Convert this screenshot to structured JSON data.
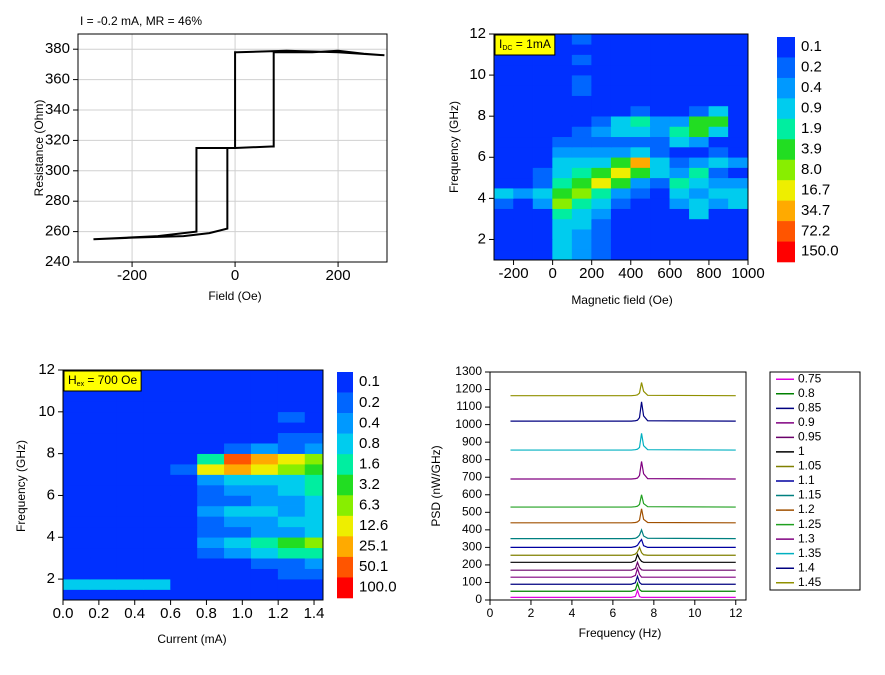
{
  "chart_data": [
    {
      "type": "line",
      "title": "I = -0.2 mA, MR = 46%",
      "x_label": "Field (Oe)",
      "y_label": "Resistance (Ohm)",
      "xlim": [
        -305,
        295
      ],
      "ylim": [
        240,
        390
      ],
      "xticks": [
        -200,
        0,
        200
      ],
      "yticks": [
        240,
        260,
        280,
        300,
        320,
        340,
        360,
        380
      ],
      "grid": true,
      "series": [
        {
          "color": "#000000",
          "x": [
            -275,
            -200,
            -100,
            -50,
            -15,
            -15,
            0,
            70,
            75,
            75,
            150,
            200,
            250,
            290,
            200,
            100,
            5,
            0,
            0,
            -40,
            -75,
            -75,
            -150,
            -275
          ],
          "values": [
            255,
            256,
            257,
            259,
            262,
            315,
            315,
            316,
            316,
            378,
            378,
            379,
            377,
            376,
            378,
            379,
            378,
            378,
            315,
            315,
            315,
            260,
            257,
            255
          ]
        }
      ]
    },
    {
      "type": "heatmap",
      "annotation": {
        "text": "I",
        "subscript": "DC",
        "suffix": " = 1mA"
      },
      "x_label": "Magnetic field (Oe)",
      "y_label": "Frequency (GHz)",
      "xlim": [
        -300,
        1000
      ],
      "ylim": [
        1,
        12
      ],
      "xticks": [
        -200,
        0,
        200,
        400,
        600,
        800,
        1000
      ],
      "yticks": [
        2,
        4,
        6,
        8,
        10,
        12
      ],
      "x_edges": [
        -300,
        -200,
        -100,
        0,
        100,
        200,
        300,
        400,
        500,
        600,
        700,
        800,
        900,
        1000
      ],
      "y_edges": [
        1,
        1.5,
        2,
        2.5,
        3,
        3.5,
        4,
        4.5,
        5,
        5.5,
        6,
        6.5,
        7,
        7.5,
        8,
        8.5,
        9,
        9.5,
        10,
        10.5,
        11,
        11.5,
        12
      ],
      "z": [
        [
          0.1,
          0.1,
          0.1,
          0.9,
          0.4,
          0.2,
          0.1,
          0.1,
          0.1,
          0.1,
          0.1,
          0.1,
          0.1
        ],
        [
          0.1,
          0.1,
          0.1,
          0.9,
          0.4,
          0.2,
          0.1,
          0.1,
          0.1,
          0.1,
          0.1,
          0.1,
          0.1
        ],
        [
          0.1,
          0.1,
          0.1,
          0.9,
          0.4,
          0.2,
          0.1,
          0.1,
          0.1,
          0.1,
          0.1,
          0.1,
          0.1
        ],
        [
          0.1,
          0.1,
          0.1,
          0.9,
          0.9,
          0.2,
          0.1,
          0.1,
          0.1,
          0.1,
          0.1,
          0.1,
          0.1
        ],
        [
          0.1,
          0.1,
          0.1,
          1.9,
          0.9,
          0.4,
          0.1,
          0.1,
          0.1,
          0.1,
          0.9,
          0.1,
          0.1
        ],
        [
          0.2,
          0.1,
          0.4,
          8,
          1.9,
          0.9,
          0.2,
          0.1,
          0.1,
          0.4,
          0.9,
          0.4,
          0.9
        ],
        [
          0.9,
          0.4,
          0.9,
          3.9,
          8,
          1.9,
          0.4,
          0.2,
          0.1,
          0.9,
          0.4,
          0.9,
          0.9
        ],
        [
          0.1,
          0.1,
          0.2,
          1.9,
          3.9,
          16.7,
          3.9,
          0.4,
          0.2,
          1.9,
          0.9,
          0.4,
          0.4
        ],
        [
          0.1,
          0.1,
          0.2,
          0.9,
          1.9,
          3.9,
          16.7,
          3.9,
          0.9,
          0.4,
          1.9,
          0.2,
          0.1
        ],
        [
          0.1,
          0.1,
          0.1,
          0.9,
          0.9,
          0.9,
          3.9,
          34.7,
          0.9,
          0.2,
          0.4,
          0.9,
          0.4
        ],
        [
          0.1,
          0.1,
          0.1,
          0.4,
          0.4,
          0.4,
          0.4,
          0.9,
          0.2,
          0.1,
          0.1,
          0.2,
          0.1
        ],
        [
          0.1,
          0.1,
          0.1,
          0.2,
          0.2,
          0.2,
          0.2,
          0.2,
          0.2,
          0.9,
          0.4,
          0.1,
          0.1
        ],
        [
          0.1,
          0.1,
          0.1,
          0.1,
          0.2,
          0.4,
          0.9,
          0.9,
          0.4,
          1.9,
          3.9,
          0.9,
          0.1
        ],
        [
          0.1,
          0.1,
          0.1,
          0.1,
          0.1,
          0.2,
          0.9,
          1.9,
          0.4,
          0.4,
          3.9,
          3.9,
          0.1
        ],
        [
          0.1,
          0.1,
          0.1,
          0.1,
          0.1,
          0.1,
          0.1,
          0.2,
          0.1,
          0.1,
          0.2,
          0.9,
          0.1
        ],
        [
          0.1,
          0.1,
          0.1,
          0.1,
          0.1,
          0.1,
          0.1,
          0.1,
          0.1,
          0.1,
          0.1,
          0.1,
          0.1
        ],
        [
          0.1,
          0.1,
          0.1,
          0.1,
          0.2,
          0.1,
          0.1,
          0.1,
          0.1,
          0.1,
          0.1,
          0.1,
          0.1
        ],
        [
          0.1,
          0.1,
          0.1,
          0.1,
          0.2,
          0.1,
          0.1,
          0.1,
          0.1,
          0.1,
          0.1,
          0.1,
          0.1
        ],
        [
          0.1,
          0.1,
          0.1,
          0.1,
          0.1,
          0.1,
          0.1,
          0.1,
          0.1,
          0.1,
          0.1,
          0.1,
          0.1
        ],
        [
          0.1,
          0.1,
          0.1,
          0.1,
          0.2,
          0.1,
          0.1,
          0.1,
          0.1,
          0.1,
          0.1,
          0.1,
          0.1
        ],
        [
          0.1,
          0.1,
          0.1,
          0.1,
          0.1,
          0.1,
          0.1,
          0.1,
          0.1,
          0.1,
          0.1,
          0.1,
          0.1
        ],
        [
          0.1,
          0.1,
          0.1,
          0.1,
          0.2,
          0.1,
          0.1,
          0.1,
          0.1,
          0.1,
          0.1,
          0.1,
          0.1
        ]
      ],
      "levels": [
        0.1,
        0.2,
        0.4,
        0.9,
        1.9,
        3.9,
        {
          "value": 8,
          "label": "8.0"
        },
        16.7,
        34.7,
        72.2,
        {
          "value": 150,
          "label": "150.0"
        }
      ],
      "colors": [
        "#0030ff",
        "#0066ff",
        "#0099ff",
        "#00ccee",
        "#00eea0",
        "#22dd22",
        "#88ee00",
        "#eeee00",
        "#ffaa00",
        "#ff5500",
        "#ff0000"
      ]
    },
    {
      "type": "heatmap",
      "annotation": {
        "text": "H",
        "subscript": "ex",
        "suffix": " = 700 Oe"
      },
      "x_label": "Current (mA)",
      "y_label": "Frequency (GHz)",
      "xlim": [
        0,
        1.45
      ],
      "ylim": [
        1,
        12
      ],
      "xticks": [
        {
          "value": 0,
          "label": "0.0"
        },
        0.2,
        0.4,
        0.6,
        0.8,
        {
          "value": 1,
          "label": "1.0"
        },
        1.2,
        1.4
      ],
      "yticks": [
        2,
        4,
        6,
        8,
        10,
        12
      ],
      "x_edges": [
        0,
        0.15,
        0.3,
        0.45,
        0.6,
        0.75,
        0.9,
        1.05,
        1.2,
        1.35,
        1.45
      ],
      "y_edges": [
        1,
        1.5,
        2,
        2.5,
        3,
        3.5,
        4,
        4.5,
        5,
        5.5,
        6,
        6.5,
        7,
        7.5,
        8,
        8.5,
        9,
        9.5,
        10,
        10.5,
        11,
        11.5,
        12
      ],
      "z": [
        [
          0.1,
          0.1,
          0.1,
          0.1,
          0.1,
          0.1,
          0.1,
          0.1,
          0.1,
          0.1
        ],
        [
          0.8,
          0.8,
          0.8,
          0.8,
          0.1,
          0.1,
          0.1,
          0.1,
          0.1,
          0.1
        ],
        [
          0.1,
          0.1,
          0.1,
          0.1,
          0.1,
          0.1,
          0.1,
          0.1,
          0.2,
          0.2
        ],
        [
          0.1,
          0.1,
          0.1,
          0.1,
          0.1,
          0.1,
          0.1,
          0.2,
          0.2,
          0.4
        ],
        [
          0.1,
          0.1,
          0.1,
          0.1,
          0.1,
          0.2,
          0.4,
          0.8,
          1.6,
          1.6
        ],
        [
          0.1,
          0.1,
          0.1,
          0.1,
          0.1,
          0.4,
          0.8,
          1.6,
          3.2,
          6.3
        ],
        [
          0.1,
          0.1,
          0.1,
          0.1,
          0.1,
          0.2,
          0.2,
          0.4,
          0.4,
          0.8
        ],
        [
          0.1,
          0.1,
          0.1,
          0.1,
          0.1,
          0.2,
          0.4,
          0.4,
          0.8,
          0.8
        ],
        [
          0.1,
          0.1,
          0.1,
          0.1,
          0.1,
          0.4,
          0.8,
          0.8,
          0.4,
          0.8
        ],
        [
          0.1,
          0.1,
          0.1,
          0.1,
          0.1,
          0.2,
          0.2,
          0.4,
          0.4,
          0.8
        ],
        [
          0.1,
          0.1,
          0.1,
          0.1,
          0.1,
          0.2,
          0.4,
          0.4,
          0.8,
          1.6
        ],
        [
          0.1,
          0.1,
          0.1,
          0.1,
          0.1,
          0.4,
          0.8,
          0.8,
          0.8,
          1.6
        ],
        [
          0.1,
          0.1,
          0.1,
          0.1,
          0.2,
          12.6,
          25.1,
          12.6,
          6.3,
          3.2
        ],
        [
          0.1,
          0.1,
          0.1,
          0.1,
          0.1,
          1.6,
          50.1,
          25.1,
          12.6,
          6.3
        ],
        [
          0.1,
          0.1,
          0.1,
          0.1,
          0.1,
          0.1,
          0.2,
          0.4,
          0.2,
          0.4
        ],
        [
          0.1,
          0.1,
          0.1,
          0.1,
          0.1,
          0.1,
          0.1,
          0.1,
          0.2,
          0.2
        ],
        [
          0.1,
          0.1,
          0.1,
          0.1,
          0.1,
          0.1,
          0.1,
          0.1,
          0.1,
          0.1
        ],
        [
          0.1,
          0.1,
          0.1,
          0.1,
          0.1,
          0.1,
          0.1,
          0.1,
          0.2,
          0.1
        ],
        [
          0.1,
          0.1,
          0.1,
          0.1,
          0.1,
          0.1,
          0.1,
          0.1,
          0.1,
          0.1
        ],
        [
          0.1,
          0.1,
          0.1,
          0.1,
          0.1,
          0.1,
          0.1,
          0.1,
          0.1,
          0.1
        ],
        [
          0.1,
          0.1,
          0.1,
          0.1,
          0.1,
          0.1,
          0.1,
          0.1,
          0.1,
          0.1
        ],
        [
          0.1,
          0.1,
          0.1,
          0.1,
          0.1,
          0.1,
          0.1,
          0.1,
          0.1,
          0.1
        ]
      ],
      "levels": [
        0.1,
        0.2,
        0.4,
        0.8,
        1.6,
        3.2,
        6.3,
        12.6,
        25.1,
        50.1,
        {
          "value": 100,
          "label": "100.0"
        }
      ],
      "colors": [
        "#0030ff",
        "#0066ff",
        "#0099ff",
        "#00ccee",
        "#00eea0",
        "#22dd22",
        "#88ee00",
        "#eeee00",
        "#ffaa00",
        "#ff5500",
        "#ff0000"
      ]
    },
    {
      "type": "line",
      "x_label": "Frequency (Hz)",
      "y_label": "PSD (nW/GHz)",
      "xlim": [
        0,
        12.5
      ],
      "ylim": [
        0,
        1300
      ],
      "xticks": [
        0,
        2,
        4,
        6,
        8,
        10,
        12
      ],
      "yticks": [
        0,
        100,
        200,
        300,
        400,
        500,
        600,
        700,
        800,
        900,
        1000,
        1100,
        1200,
        1300
      ],
      "legend": "right-outside",
      "x": [
        1,
        6.9,
        7.1,
        7.2,
        7.3,
        7.4,
        7.5,
        7.7,
        12
      ],
      "series": [
        {
          "name": "0.75",
          "color": "#e000e0",
          "values": [
            15,
            15,
            20,
            55,
            20,
            15,
            15,
            15,
            15
          ]
        },
        {
          "name": "0.8",
          "color": "#008000",
          "values": [
            50,
            50,
            58,
            95,
            60,
            50,
            50,
            50,
            50
          ]
        },
        {
          "name": "0.85",
          "color": "#000080",
          "values": [
            90,
            90,
            98,
            135,
            100,
            90,
            90,
            90,
            90
          ]
        },
        {
          "name": "0.9",
          "color": "#800080",
          "values": [
            130,
            130,
            140,
            180,
            145,
            130,
            130,
            130,
            130
          ]
        },
        {
          "name": "0.95",
          "color": "#6a006a",
          "values": [
            170,
            170,
            180,
            215,
            185,
            172,
            170,
            170,
            170
          ]
        },
        {
          "name": "1",
          "color": "#000000",
          "values": [
            215,
            215,
            225,
            260,
            235,
            220,
            215,
            215,
            215
          ]
        },
        {
          "name": "1.05",
          "color": "#808000",
          "values": [
            255,
            255,
            262,
            275,
            300,
            270,
            258,
            255,
            255
          ]
        },
        {
          "name": "1.1",
          "color": "#0000a0",
          "values": [
            300,
            300,
            305,
            312,
            330,
            345,
            310,
            300,
            300
          ]
        },
        {
          "name": "1.15",
          "color": "#008080",
          "values": [
            350,
            350,
            352,
            358,
            370,
            400,
            365,
            352,
            350
          ]
        },
        {
          "name": "1.2",
          "color": "#a05000",
          "values": [
            440,
            440,
            442,
            445,
            455,
            520,
            460,
            442,
            440
          ]
        },
        {
          "name": "1.25",
          "color": "#20a020",
          "values": [
            530,
            530,
            532,
            535,
            545,
            600,
            550,
            532,
            530
          ]
        },
        {
          "name": "1.3",
          "color": "#800080",
          "values": [
            690,
            690,
            692,
            695,
            710,
            790,
            720,
            692,
            690
          ]
        },
        {
          "name": "1.35",
          "color": "#00b0c0",
          "values": [
            855,
            855,
            857,
            860,
            870,
            950,
            880,
            857,
            855
          ]
        },
        {
          "name": "1.4",
          "color": "#000080",
          "values": [
            1020,
            1020,
            1022,
            1025,
            1040,
            1130,
            1050,
            1022,
            1020
          ]
        },
        {
          "name": "1.45",
          "color": "#909000",
          "values": [
            1165,
            1165,
            1167,
            1170,
            1180,
            1240,
            1190,
            1167,
            1165
          ]
        }
      ]
    }
  ]
}
